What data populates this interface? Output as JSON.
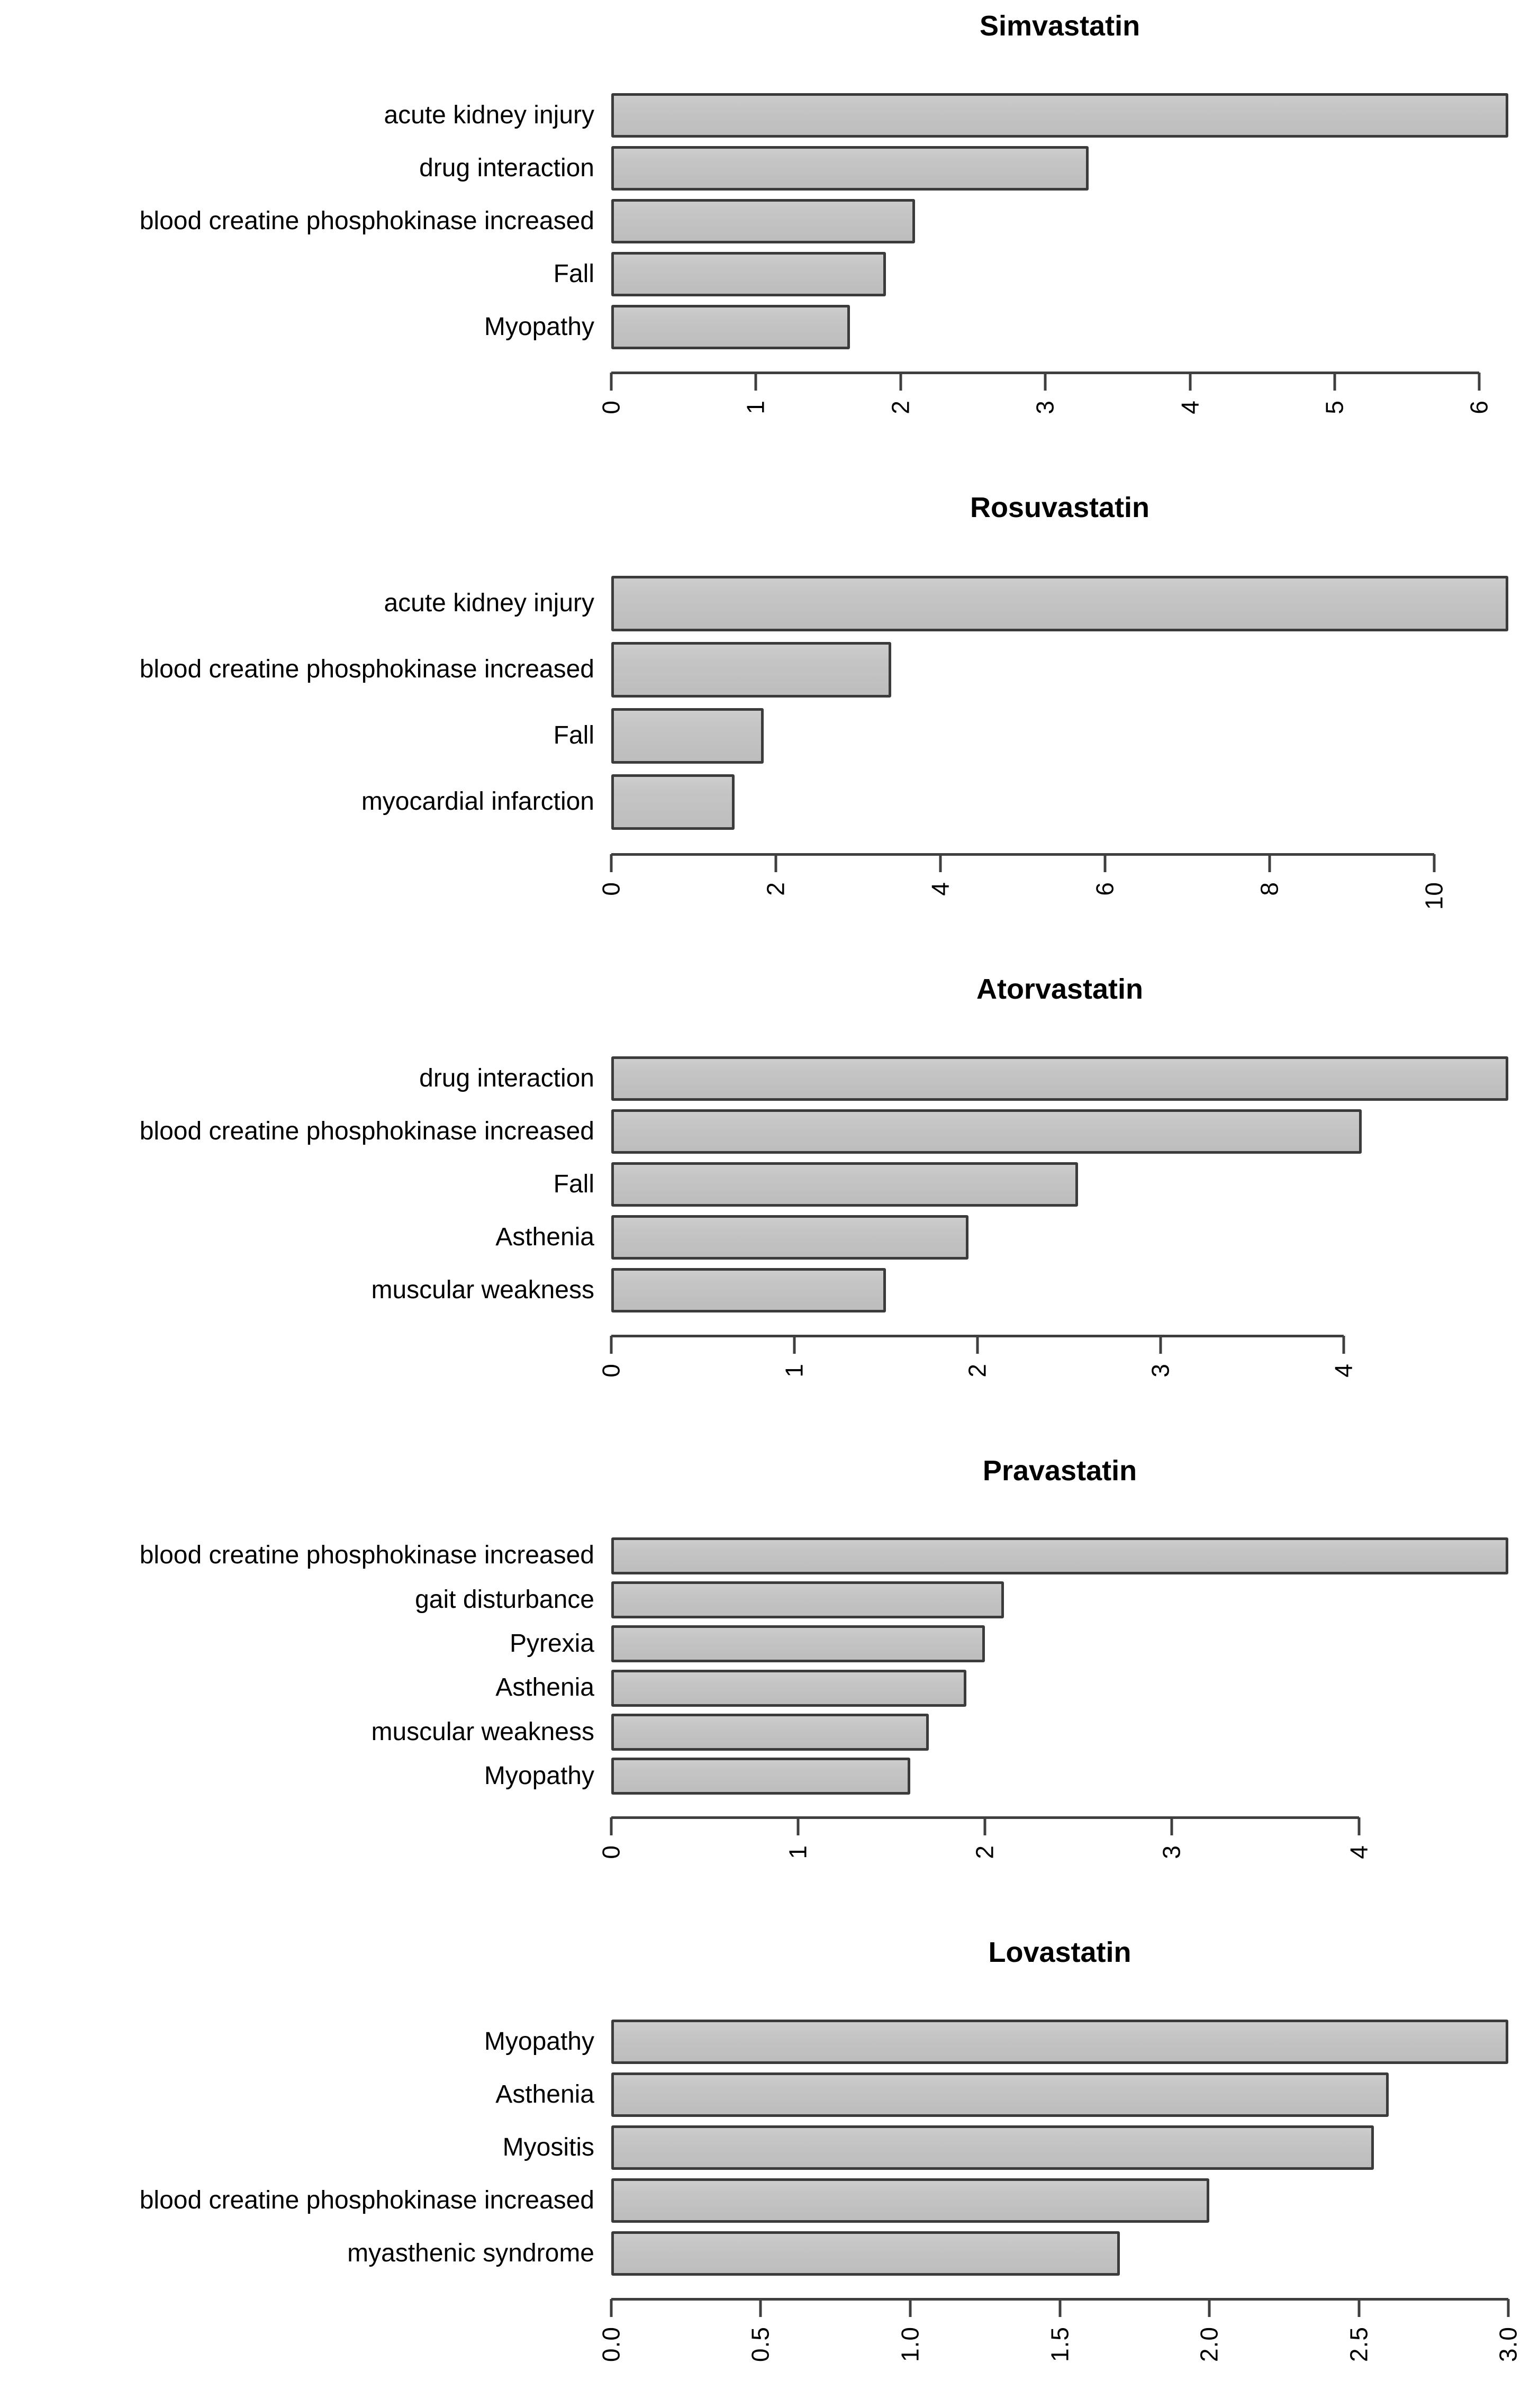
{
  "figure": {
    "description": "Five stacked horizontal bar charts of adverse events reported for statin drugs"
  },
  "colors": {
    "background": "#ffffff",
    "bar_fill": "#c5c5c5",
    "bar_border": "#3b3b3b",
    "axis": "#3f3f3f",
    "text": "#000000"
  },
  "chart_data": [
    {
      "type": "bar",
      "orientation": "horizontal",
      "title": "Simvastatin",
      "categories": [
        "acute kidney injury",
        "drug interaction",
        "blood creatine phosphokinase increased",
        "Fall",
        "Myopathy"
      ],
      "values": [
        6.2,
        3.3,
        2.1,
        1.9,
        1.65
      ],
      "xlim": [
        0,
        6.2
      ],
      "xmax": 6.2,
      "ticks": [
        0,
        1,
        2,
        3,
        4,
        5,
        6
      ],
      "tick_labels": [
        "0",
        "1",
        "2",
        "3",
        "4",
        "5",
        "6"
      ],
      "grid": "off",
      "legend": "none"
    },
    {
      "type": "bar",
      "orientation": "horizontal",
      "title": "Rosuvastatin",
      "categories": [
        "acute kidney injury",
        "blood creatine phosphokinase increased",
        "Fall",
        "myocardial infarction"
      ],
      "values": [
        10.9,
        3.4,
        1.85,
        1.5
      ],
      "xlim": [
        0,
        10.9
      ],
      "xmax": 10.9,
      "ticks": [
        0,
        2,
        4,
        6,
        8,
        10
      ],
      "tick_labels": [
        "0",
        "2",
        "4",
        "6",
        "8",
        "10"
      ],
      "grid": "off",
      "legend": "none"
    },
    {
      "type": "bar",
      "orientation": "horizontal",
      "title": "Atorvastatin",
      "categories": [
        "drug interaction",
        "blood creatine phosphokinase increased",
        "Fall",
        "Asthenia",
        "muscular weakness"
      ],
      "values": [
        4.9,
        4.1,
        2.55,
        1.95,
        1.5
      ],
      "xlim": [
        0,
        4.9
      ],
      "xmax": 4.9,
      "ticks": [
        0,
        1,
        2,
        3,
        4
      ],
      "tick_labels": [
        "0",
        "1",
        "2",
        "3",
        "4"
      ],
      "grid": "off",
      "legend": "none"
    },
    {
      "type": "bar",
      "orientation": "horizontal",
      "title": "Pravastatin",
      "categories": [
        "blood creatine phosphokinase increased",
        "gait disturbance",
        "Pyrexia",
        "Asthenia",
        "muscular weakness",
        "Myopathy"
      ],
      "values": [
        4.8,
        2.1,
        2.0,
        1.9,
        1.7,
        1.6
      ],
      "xlim": [
        0,
        4.8
      ],
      "xmax": 4.8,
      "ticks": [
        0,
        1,
        2,
        3,
        4
      ],
      "tick_labels": [
        "0",
        "1",
        "2",
        "3",
        "4"
      ],
      "grid": "off",
      "legend": "none"
    },
    {
      "type": "bar",
      "orientation": "horizontal",
      "title": "Lovastatin",
      "categories": [
        "Myopathy",
        "Asthenia",
        "Myositis",
        "blood creatine phosphokinase increased",
        "myasthenic syndrome"
      ],
      "values": [
        3.0,
        2.6,
        2.55,
        2.0,
        1.7
      ],
      "xlim": [
        0,
        3.0
      ],
      "xmax": 3.0,
      "ticks": [
        0,
        0.5,
        1,
        1.5,
        2,
        2.5,
        3
      ],
      "tick_labels": [
        "0.0",
        "0.5",
        "1.0",
        "1.5",
        "2.0",
        "2.5",
        "3.0"
      ],
      "grid": "off",
      "legend": "none"
    }
  ]
}
